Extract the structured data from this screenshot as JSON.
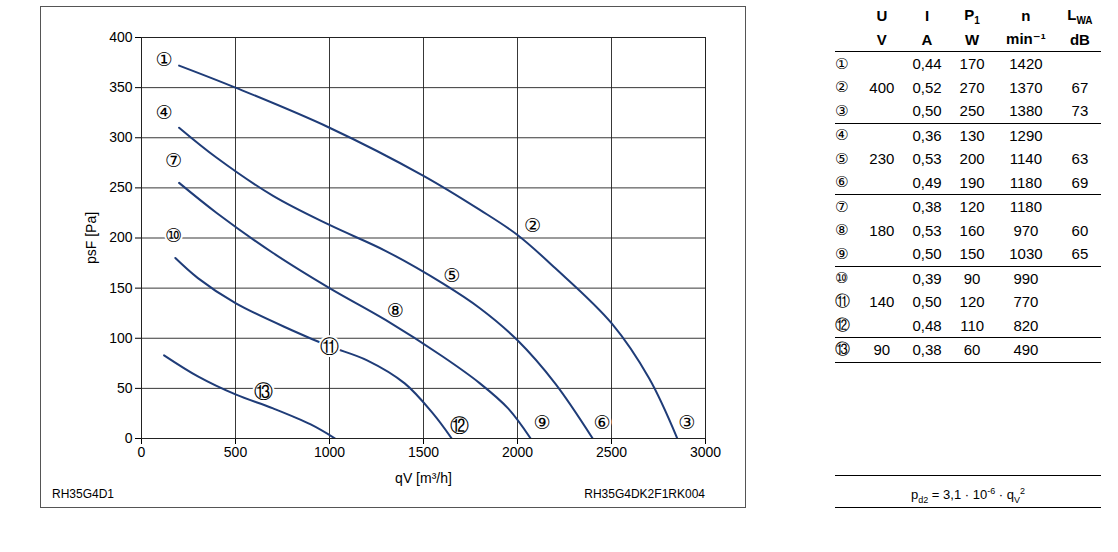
{
  "chart_data": {
    "type": "line",
    "x_label": "qV [m³/h]",
    "y_label": "psF [Pa]",
    "xlim": [
      0,
      3000
    ],
    "xticks": [
      0,
      500,
      1000,
      1500,
      2000,
      2500,
      3000
    ],
    "ylim": [
      0,
      400
    ],
    "yticks": [
      0,
      50,
      100,
      150,
      200,
      250,
      300,
      350,
      400
    ],
    "grid": true,
    "series": [
      {
        "color": "#1f3c78",
        "x": [
          200,
          500,
          1000,
          1500,
          1800,
          2000,
          2200,
          2500,
          2700,
          2850
        ],
        "values": [
          372,
          350,
          310,
          262,
          228,
          203,
          170,
          115,
          60,
          0
        ]
      },
      {
        "color": "#1f3c78",
        "x": [
          200,
          400,
          700,
          1000,
          1300,
          1600,
          1800,
          2000,
          2200,
          2400
        ],
        "values": [
          310,
          280,
          242,
          213,
          187,
          155,
          130,
          98,
          55,
          0
        ]
      },
      {
        "color": "#1f3c78",
        "x": [
          200,
          400,
          700,
          1000,
          1300,
          1600,
          1800,
          1950,
          2070
        ],
        "values": [
          255,
          225,
          185,
          150,
          118,
          82,
          55,
          30,
          0
        ]
      },
      {
        "color": "#1f3c78",
        "x": [
          180,
          300,
          500,
          800,
          1000,
          1200,
          1400,
          1550,
          1650
        ],
        "values": [
          180,
          160,
          135,
          108,
          92,
          78,
          55,
          25,
          0
        ]
      },
      {
        "color": "#1f3c78",
        "x": [
          120,
          300,
          500,
          700,
          900,
          1030
        ],
        "values": [
          83,
          62,
          44,
          30,
          14,
          0
        ]
      }
    ],
    "annotations": [
      {
        "text": "①",
        "x": 120,
        "y": 378
      },
      {
        "text": "②",
        "x": 2080,
        "y": 212
      },
      {
        "text": "③",
        "x": 2900,
        "y": 16
      },
      {
        "text": "④",
        "x": 120,
        "y": 325
      },
      {
        "text": "⑤",
        "x": 1650,
        "y": 162
      },
      {
        "text": "⑥",
        "x": 2450,
        "y": 16
      },
      {
        "text": "⑦",
        "x": 170,
        "y": 277
      },
      {
        "text": "⑧",
        "x": 1350,
        "y": 127
      },
      {
        "text": "⑨",
        "x": 2130,
        "y": 16
      },
      {
        "text": "⑩",
        "x": 170,
        "y": 202
      },
      {
        "text": "⑪",
        "x": 1000,
        "y": 91
      },
      {
        "text": "⑫",
        "x": 1690,
        "y": 13
      },
      {
        "text": "⑬",
        "x": 650,
        "y": 46
      }
    ]
  },
  "footer": {
    "left": "RH35G4D1",
    "right": "RH35G4DK2F1RK004"
  },
  "table": {
    "header": [
      "U",
      "I",
      {
        "main": "P",
        "sub": "1"
      },
      "n",
      {
        "main": "L",
        "sub": "WA"
      }
    ],
    "units": [
      "V",
      "A",
      "W",
      "min⁻¹",
      "dB"
    ],
    "groups": [
      {
        "U": "400",
        "rows": [
          [
            "①",
            "0,44",
            "170",
            "1420"
          ],
          [
            "②",
            "0,52",
            "270",
            "1370",
            "67"
          ],
          [
            "③",
            "0,50",
            "250",
            "1380",
            "73"
          ]
        ]
      },
      {
        "U": "230",
        "rows": [
          [
            "④",
            "0,36",
            "130",
            "1290"
          ],
          [
            "⑤",
            "0,53",
            "200",
            "1140",
            "63"
          ],
          [
            "⑥",
            "0,49",
            "190",
            "1180",
            "69"
          ]
        ]
      },
      {
        "U": "180",
        "rows": [
          [
            "⑦",
            "0,38",
            "120",
            "1180"
          ],
          [
            "⑧",
            "0,53",
            "160",
            "970",
            "60"
          ],
          [
            "⑨",
            "0,50",
            "150",
            "1030",
            "65"
          ]
        ]
      },
      {
        "U": "140",
        "rows": [
          [
            "⑩",
            "0,39",
            "90",
            "990"
          ],
          [
            "⑪",
            "0,50",
            "120",
            "770"
          ],
          [
            "⑫",
            "0,48",
            "110",
            "820"
          ]
        ]
      },
      {
        "U": "90",
        "rows": [
          [
            "⑬",
            "0,38",
            "60",
            "490"
          ]
        ]
      }
    ]
  },
  "formula": [
    {
      "text": "p"
    },
    {
      "sub": "d2"
    },
    {
      "text": " = 3,1 · 10"
    },
    {
      "sup": "-6"
    },
    {
      "text": " · q"
    },
    {
      "sub": "V"
    },
    {
      "sup": "2"
    }
  ]
}
